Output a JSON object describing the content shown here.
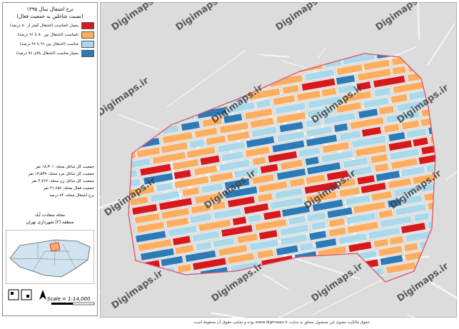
{
  "header": {
    "title": "نرخ اشتغال سال ۱۳۹۵",
    "subtitle": "(نسبت شاغلین به جمعیت فعال)"
  },
  "legend": [
    {
      "label": "بسیار نامناسب (اشتغال کمتر از ۸۰ درصد)",
      "color": "#d7191c"
    },
    {
      "label": "نامناسب (اشتغال بین ۸۰ تا ۹۱ درصد)",
      "color": "#fdae61"
    },
    {
      "label": "مناسب (اشتغال بین ۹۱ تا ۹۶ درصد)",
      "color": "#abd9e9"
    },
    {
      "label": "بسیار مناسب (اشتغال بالای ۹۶ درصد)",
      "color": "#2c7bb6"
    }
  ],
  "stats": [
    "جمعیت کل شاغل محله: ۱۸,۳۰۱ نفر",
    "جمعیت کل شاغل مرد محله: ۱۳,۵۳۹ نفر",
    "جمعیت کل شاغل زن محله: ۴,۷۶۲ نفر",
    "جمعیت فعال محله: ۲۱,۶۵۶ نفر",
    "نرخ اشتغال محله: ۸۴ درصد"
  ],
  "location": {
    "neighborhood": "محله سعادت آباد",
    "district": "منطقه (۲) شهرداری تهران"
  },
  "scale": "Scale = 1:14,000",
  "watermark": "Digimaps.ir",
  "footer": "حقوق مالکیت معنوی این محصول متعلق به سایت www.digimaps.ir بوده و تمامی حقوق آن محفوظ است."
}
